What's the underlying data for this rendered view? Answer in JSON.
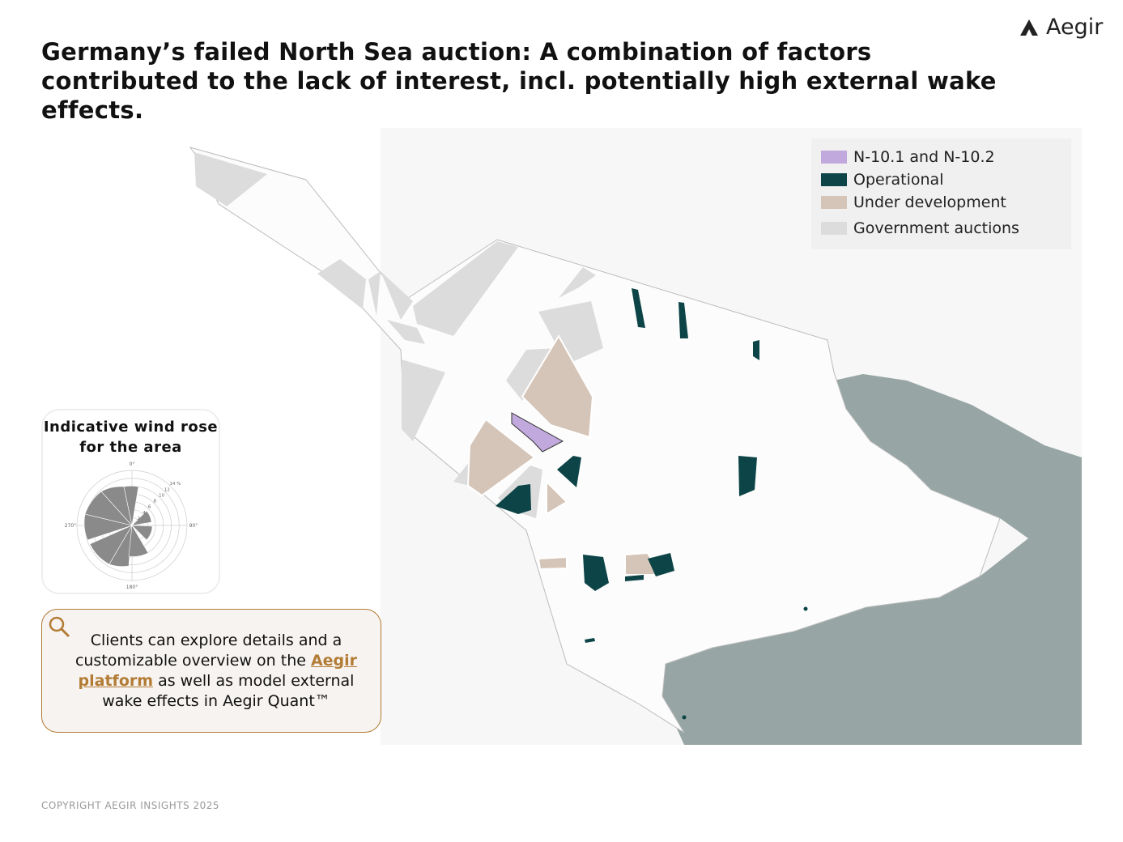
{
  "logo": "Aegir",
  "header": {
    "title": "Germany’s failed North Sea auction: A combination of factors contributed to the lack of interest, incl. potentially high external wake effects."
  },
  "legend": {
    "items": [
      {
        "label": "N-10.1 and N-10.2",
        "color": "#c2a9dd"
      },
      {
        "label": "Operational",
        "color": "#0d4447"
      },
      {
        "label": "Under development",
        "color": "#d5c5b8"
      },
      {
        "label": "Government auctions",
        "color": "#dcdcdc"
      }
    ]
  },
  "wind_rose": {
    "title": "Indicative wind rose for the area",
    "directions": [
      "0°",
      "90°",
      "180°",
      "270°"
    ],
    "rings": [
      "2",
      "4",
      "6",
      "8",
      "10",
      "12",
      "14 %"
    ]
  },
  "callout": {
    "before": "Clients can explore details and a customizable overview on the",
    "link": "Aegir platform",
    "after": "as well as model external wake effects in Aegir Quant™"
  },
  "footer": "COPYRIGHT AEGIR INSIGHTS 2025"
}
